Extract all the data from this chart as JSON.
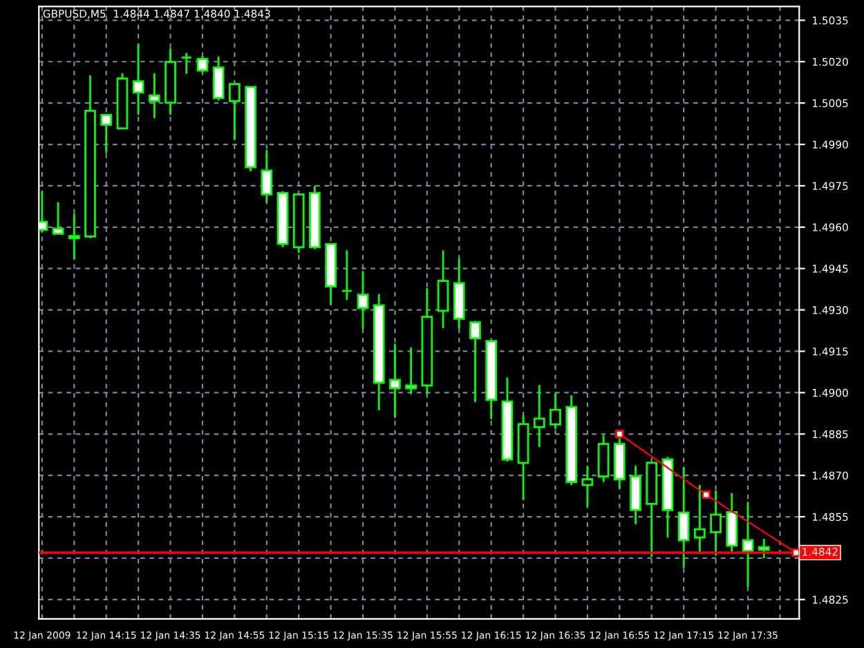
{
  "chart_data": {
    "type": "candlestick",
    "title": "GBPUSD,M5  1.4844 1.4847 1.4840 1.4843",
    "x": [
      "2009-01-12T13:55",
      "2009-01-12T14:00",
      "2009-01-12T14:05",
      "2009-01-12T14:10",
      "2009-01-12T14:15",
      "2009-01-12T14:20",
      "2009-01-12T14:25",
      "2009-01-12T14:30",
      "2009-01-12T14:35",
      "2009-01-12T14:40",
      "2009-01-12T14:45",
      "2009-01-12T14:50",
      "2009-01-12T14:55",
      "2009-01-12T15:00",
      "2009-01-12T15:05",
      "2009-01-12T15:10",
      "2009-01-12T15:15",
      "2009-01-12T15:20",
      "2009-01-12T15:25",
      "2009-01-12T15:30",
      "2009-01-12T15:35",
      "2009-01-12T15:40",
      "2009-01-12T15:45",
      "2009-01-12T15:50",
      "2009-01-12T15:55",
      "2009-01-12T16:00",
      "2009-01-12T16:05",
      "2009-01-12T16:10",
      "2009-01-12T16:15",
      "2009-01-12T16:20",
      "2009-01-12T16:25",
      "2009-01-12T16:30",
      "2009-01-12T16:35",
      "2009-01-12T16:40",
      "2009-01-12T16:45",
      "2009-01-12T16:50",
      "2009-01-12T16:55",
      "2009-01-12T17:00",
      "2009-01-12T17:05",
      "2009-01-12T17:10",
      "2009-01-12T17:15",
      "2009-01-12T17:20",
      "2009-01-12T17:25",
      "2009-01-12T17:30",
      "2009-01-12T17:35",
      "2009-01-12T17:40"
    ],
    "ohlc": [
      [
        1.4962,
        1.4973,
        1.4958,
        1.4959
      ],
      [
        1.49595,
        1.4969,
        1.49576,
        1.49576
      ],
      [
        1.49568,
        1.49649,
        1.49483,
        1.4956
      ],
      [
        1.49566,
        1.5015,
        1.4956,
        1.50022
      ],
      [
        1.50007,
        1.5001,
        1.49868,
        1.49971
      ],
      [
        1.49958,
        1.50158,
        1.49958,
        1.50139
      ],
      [
        1.50129,
        1.50264,
        1.50007,
        1.50088
      ],
      [
        1.50077,
        1.50158,
        1.49995,
        1.50057
      ],
      [
        1.50051,
        1.50249,
        1.50007,
        1.50199
      ],
      [
        1.50215,
        1.50231,
        1.50156,
        1.50215
      ],
      [
        1.5021,
        1.5022,
        1.5016,
        1.50168
      ],
      [
        1.50179,
        1.50218,
        1.50059,
        1.50068
      ],
      [
        1.50057,
        1.5012,
        1.49916,
        1.50119
      ],
      [
        1.50108,
        1.5011,
        1.49803,
        1.49817
      ],
      [
        1.49805,
        1.4988,
        1.4969,
        1.49719
      ],
      [
        1.49724,
        1.4973,
        1.49527,
        1.49539
      ],
      [
        1.49527,
        1.4972,
        1.49506,
        1.49719
      ],
      [
        1.49724,
        1.4975,
        1.4952,
        1.49527
      ],
      [
        1.49539,
        1.4954,
        1.4932,
        1.49385
      ],
      [
        1.49369,
        1.49516,
        1.49336,
        1.49369
      ],
      [
        1.49355,
        1.49441,
        1.49231,
        1.49307
      ],
      [
        1.49317,
        1.49358,
        1.48936,
        1.49036
      ],
      [
        1.49046,
        1.49177,
        1.48909,
        1.49016
      ],
      [
        1.49026,
        1.49164,
        1.48995,
        1.49016
      ],
      [
        1.49026,
        1.49379,
        1.48994,
        1.49275
      ],
      [
        1.49297,
        1.49516,
        1.49234,
        1.49405
      ],
      [
        1.49397,
        1.49486,
        1.49231,
        1.49268
      ],
      [
        1.49255,
        1.4926,
        1.48966,
        1.49197
      ],
      [
        1.49187,
        1.4919,
        1.48904,
        1.48974
      ],
      [
        1.48968,
        1.49055,
        1.4875,
        1.48758
      ],
      [
        1.48745,
        1.48917,
        1.48611,
        1.48886
      ],
      [
        1.48875,
        1.49028,
        1.48803,
        1.48906
      ],
      [
        1.48885,
        1.48998,
        1.48868,
        1.48938
      ],
      [
        1.48948,
        1.4899,
        1.48665,
        1.48676
      ],
      [
        1.48665,
        1.48735,
        1.48587,
        1.48686
      ],
      [
        1.48696,
        1.48846,
        1.48676,
        1.48814
      ],
      [
        1.48814,
        1.48841,
        1.48653,
        1.48686
      ],
      [
        1.48696,
        1.48735,
        1.48523,
        1.48574
      ],
      [
        1.48597,
        1.4875,
        1.48404,
        1.48746
      ],
      [
        1.48758,
        1.48767,
        1.48475,
        1.48574
      ],
      [
        1.48565,
        1.4873,
        1.48364,
        1.48465
      ],
      [
        1.48475,
        1.48665,
        1.48416,
        1.48505
      ],
      [
        1.48494,
        1.48645,
        1.48409,
        1.48558
      ],
      [
        1.48567,
        1.48636,
        1.48416,
        1.48445
      ],
      [
        1.48465,
        1.48604,
        1.48296,
        1.48426
      ],
      [
        1.4844,
        1.4847,
        1.484,
        1.4843
      ]
    ],
    "series": [
      {
        "type": "line",
        "x": [
          "2009-01-12T16:55",
          "2009-01-12T17:22",
          "2009-01-12T17:50"
        ],
        "values": [
          1.4885,
          1.4863,
          1.4842
        ],
        "color": "#ff0000",
        "marker": "square"
      }
    ],
    "ref_lines": [
      {
        "axis": "y",
        "value": 1.4842,
        "label": "1.4842",
        "color": "#ff0000"
      }
    ],
    "xlim": [
      "2009-01-12T13:54",
      "2009-01-12T17:51"
    ],
    "xticks": [
      {
        "value": "2009-01-12T13:55",
        "label": "12 Jan 2009"
      },
      {
        "value": "2009-01-12T14:05",
        "label": null
      },
      {
        "value": "2009-01-12T14:15",
        "label": "12 Jan 14:15"
      },
      {
        "value": "2009-01-12T14:25",
        "label": null
      },
      {
        "value": "2009-01-12T14:35",
        "label": "12 Jan 14:35"
      },
      {
        "value": "2009-01-12T14:45",
        "label": null
      },
      {
        "value": "2009-01-12T14:55",
        "label": "12 Jan 14:55"
      },
      {
        "value": "2009-01-12T15:05",
        "label": null
      },
      {
        "value": "2009-01-12T15:15",
        "label": "12 Jan 15:15"
      },
      {
        "value": "2009-01-12T15:25",
        "label": null
      },
      {
        "value": "2009-01-12T15:35",
        "label": "12 Jan 15:35"
      },
      {
        "value": "2009-01-12T15:45",
        "label": null
      },
      {
        "value": "2009-01-12T15:55",
        "label": "12 Jan 15:55"
      },
      {
        "value": "2009-01-12T16:05",
        "label": null
      },
      {
        "value": "2009-01-12T16:15",
        "label": "12 Jan 16:15"
      },
      {
        "value": "2009-01-12T16:25",
        "label": null
      },
      {
        "value": "2009-01-12T16:35",
        "label": "12 Jan 16:35"
      },
      {
        "value": "2009-01-12T16:45",
        "label": null
      },
      {
        "value": "2009-01-12T16:55",
        "label": "12 Jan 16:55"
      },
      {
        "value": "2009-01-12T17:05",
        "label": null
      },
      {
        "value": "2009-01-12T17:15",
        "label": "12 Jan 17:15"
      },
      {
        "value": "2009-01-12T17:25",
        "label": null
      },
      {
        "value": "2009-01-12T17:35",
        "label": "12 Jan 17:35"
      },
      {
        "value": "2009-01-12T17:45",
        "label": null
      }
    ],
    "ylim": [
      1.4818,
      1.504
    ],
    "yticks": [
      1.5035,
      {
        "value": 1.502,
        "label": "1.5020"
      },
      1.5005,
      {
        "value": 1.499,
        "label": "1.4990"
      },
      1.4975,
      {
        "value": 1.496,
        "label": "1.4960"
      },
      1.4945,
      {
        "value": 1.493,
        "label": "1.4930"
      },
      1.4915,
      {
        "value": 1.49,
        "label": "1.4900"
      },
      1.4885,
      {
        "value": 1.487,
        "label": "1.4870"
      },
      1.4855,
      {
        "value": 1.484,
        "label": null
      },
      1.4825
    ],
    "grid": true
  }
}
